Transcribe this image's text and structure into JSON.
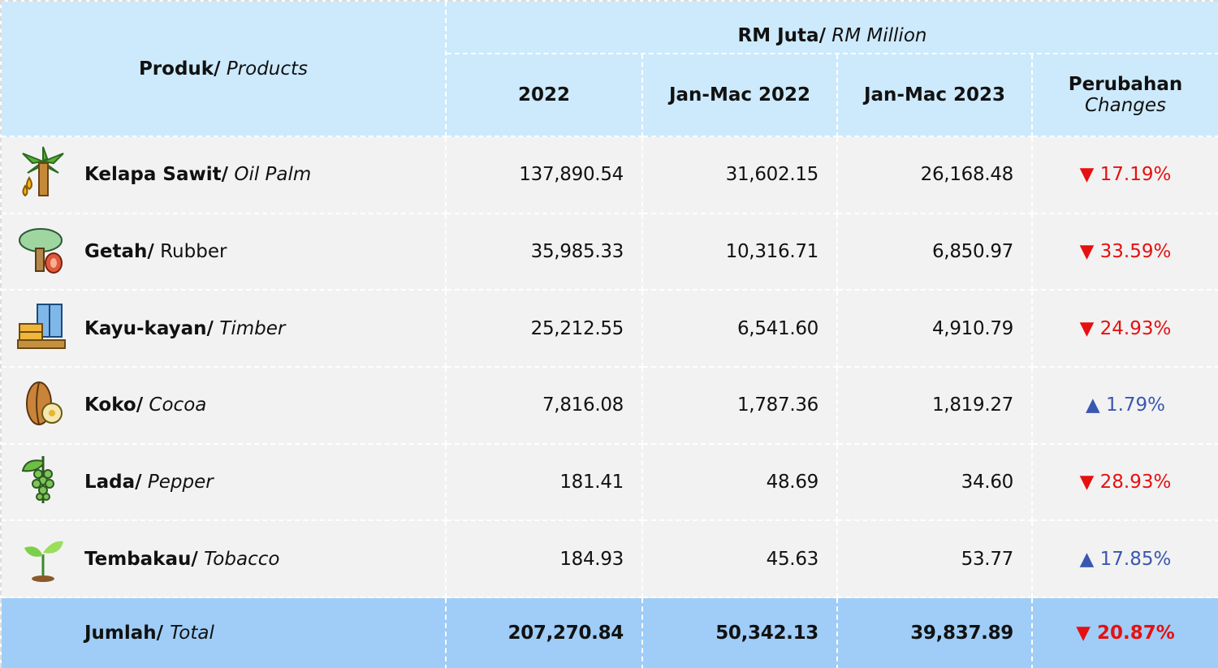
{
  "header": {
    "product_bold": "Produk/",
    "product_italic": "Products",
    "group_bold": "RM Juta/",
    "group_italic": "RM Million",
    "columns": [
      "2022",
      "Jan-Mac 2022",
      "Jan-Mac 2023"
    ],
    "change_bold": "Perubahan",
    "change_italic": "Changes"
  },
  "rows": [
    {
      "name_bold": "Kelapa Sawit/",
      "name_italic": "Oil Palm",
      "values": [
        "137,890.54",
        "31,602.15",
        "26,168.48"
      ],
      "change": "▼ 17.19%"
    },
    {
      "name_bold": "Getah/",
      "name_italic": "Rubber",
      "values": [
        "35,985.33",
        "10,316.71",
        "6,850.97"
      ],
      "change": "▼ 33.59%"
    },
    {
      "name_bold": "Kayu-kayan/",
      "name_italic": "Timber",
      "values": [
        "25,212.55",
        "6,541.60",
        "4,910.79"
      ],
      "change": "▼ 24.93%"
    },
    {
      "name_bold": "Koko/",
      "name_italic": "Cocoa",
      "values": [
        "7,816.08",
        "1,787.36",
        "1,819.27"
      ],
      "change": "▲ 1.79%"
    },
    {
      "name_bold": "Lada/",
      "name_italic": "Pepper",
      "values": [
        "181.41",
        "48.69",
        "34.60"
      ],
      "change": "▼ 28.93%"
    },
    {
      "name_bold": "Tembakau/",
      "name_italic": "Tobacco",
      "values": [
        "184.93",
        "45.63",
        "53.77"
      ],
      "change": "▲ 17.85%"
    }
  ],
  "total": {
    "name_bold": "Jumlah/",
    "name_italic": "Total",
    "values": [
      "207,270.84",
      "50,342.13",
      "39,837.89"
    ],
    "change": "▼ 20.87%"
  }
}
